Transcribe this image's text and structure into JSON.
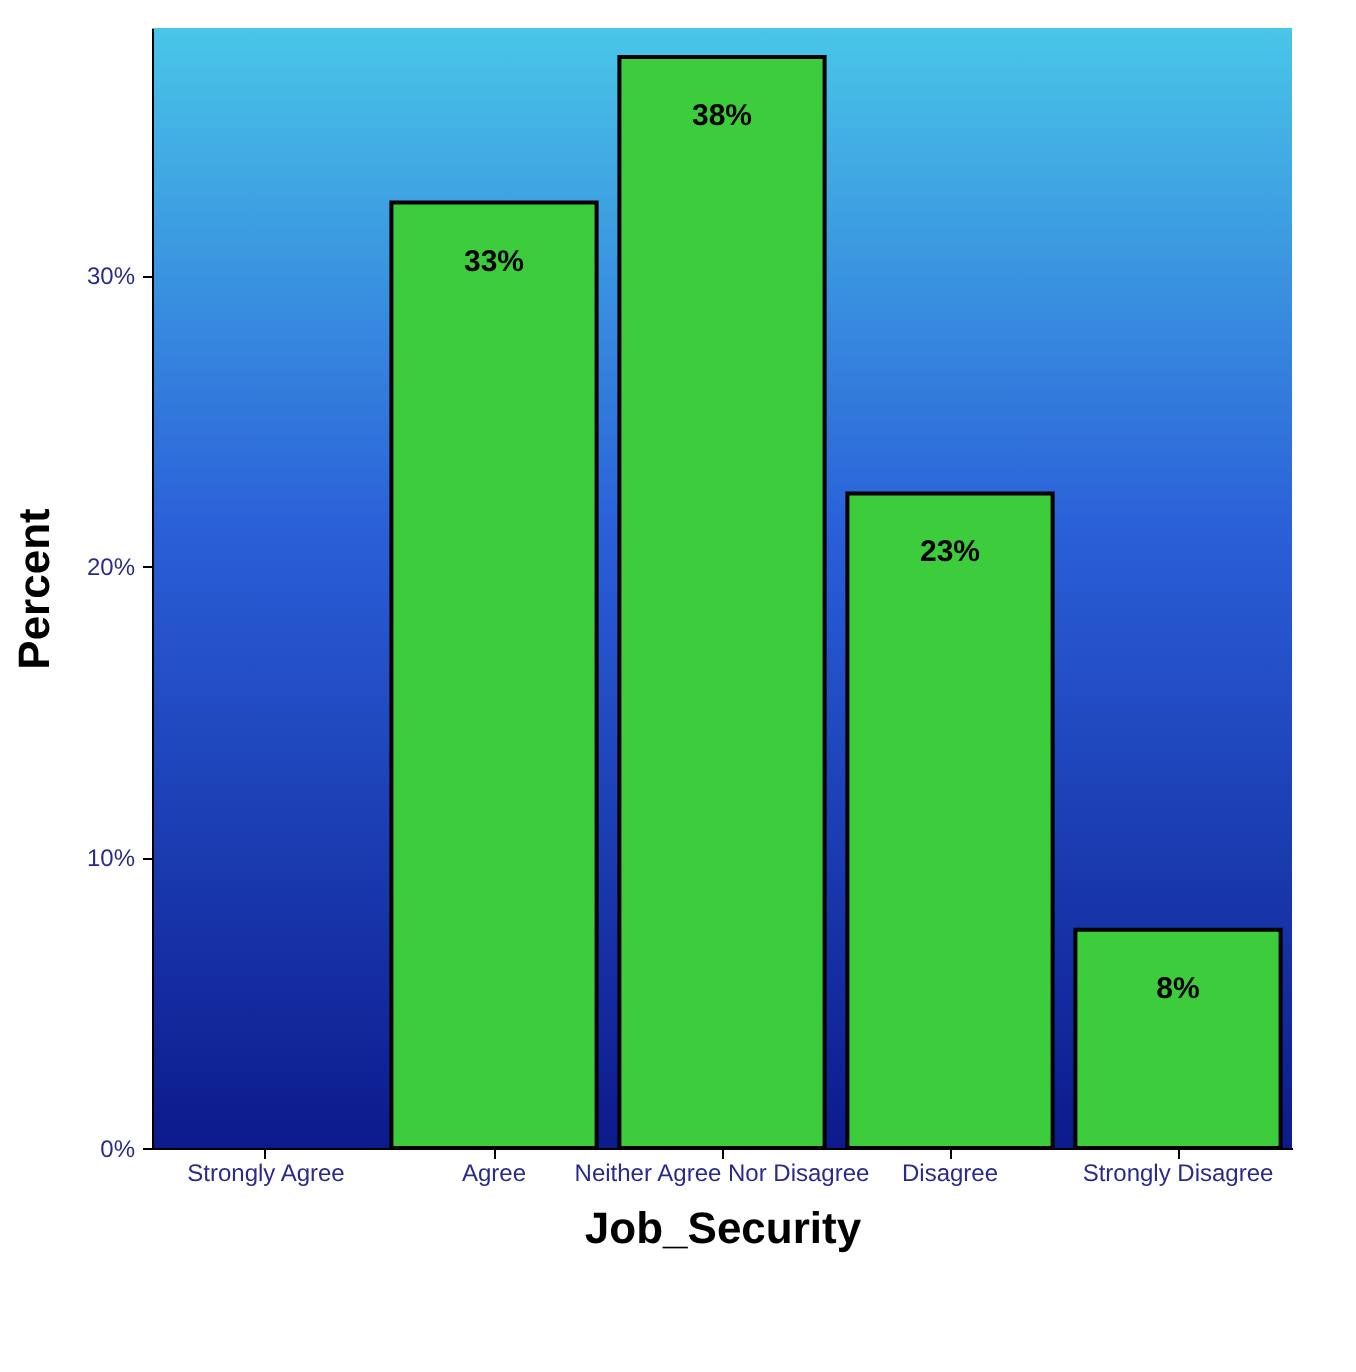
{
  "chart_data": {
    "type": "bar",
    "xlabel": "Job_Security",
    "ylabel": "Percent",
    "categories": [
      "Strongly Agree",
      "Agree",
      "Neither Agree Nor Disagree",
      "Disagree",
      "Strongly Disagree"
    ],
    "values": [
      null,
      32.5,
      37.5,
      22.5,
      7.5
    ],
    "value_labels": [
      null,
      "33%",
      "38%",
      "23%",
      "8%"
    ],
    "color": "#3ccc3c",
    "ylim": [
      0,
      38.5
    ],
    "yticks": [
      {
        "value": 0,
        "label": "0%"
      },
      {
        "value": 10,
        "label": "10%"
      },
      {
        "value": 20,
        "label": "20%"
      },
      {
        "value": 30,
        "label": "30%"
      }
    ],
    "grid": false
  }
}
